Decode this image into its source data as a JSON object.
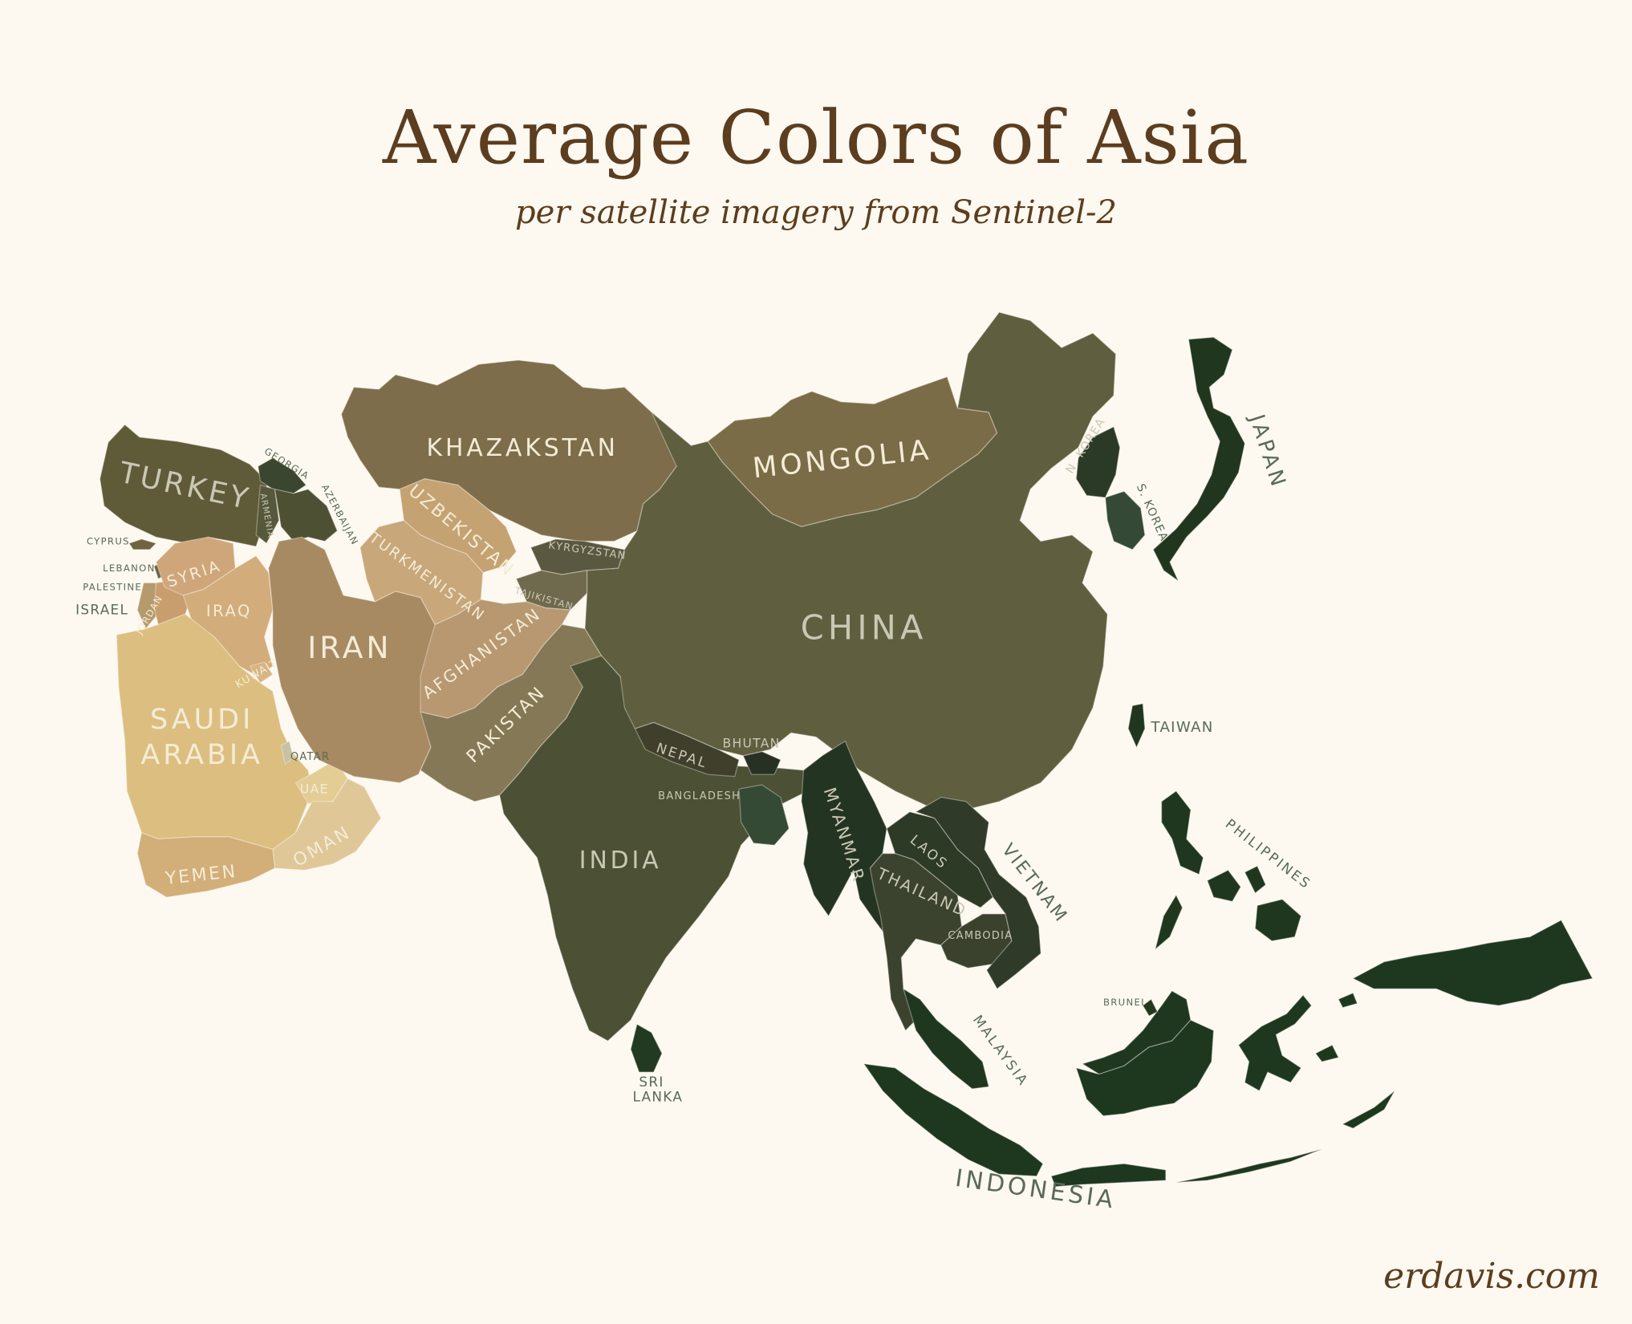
{
  "header": {
    "title": "Average Colors of Asia",
    "subtitle": "per satellite imagery from Sentinel-2"
  },
  "credit": "erdavis.com",
  "label_colors": {
    "on_dark": "#c9c8b4",
    "on_light": "#f4ecd6",
    "outside": "#5a6a58"
  },
  "countries": {
    "turkey": {
      "name": "TURKEY",
      "color": "#5f5a38"
    },
    "georgia": {
      "name": "GEORGIA",
      "color": "#3a4630"
    },
    "armenia": {
      "name": "ARMENIA",
      "color": "#55583a"
    },
    "azerbaijan": {
      "name": "AZERBAIJAN",
      "color": "#4e5034"
    },
    "cyprus": {
      "name": "CYPRUS",
      "color": "#6e6440"
    },
    "lebanon": {
      "name": "LEBANON",
      "color": "#6b6442"
    },
    "palestine": {
      "name": "PALESTINE",
      "color": "#9b8a5e"
    },
    "israel": {
      "name": "ISRAEL",
      "color": "#b59a6c"
    },
    "jordan": {
      "name": "JORDAN",
      "color": "#c89e6f"
    },
    "syria": {
      "name": "SYRIA",
      "color": "#cfa67a"
    },
    "iraq": {
      "name": "IRAQ",
      "color": "#d3ac7b"
    },
    "kuwait": {
      "name": "KUWAIT",
      "color": "#d7b584"
    },
    "saudi_arabia": {
      "name": "SAUDI\nARABIA",
      "color": "#dcbe80"
    },
    "qatar": {
      "name": "QATAR",
      "color": "#c8c2a4"
    },
    "uae": {
      "name": "UAE",
      "color": "#e4cd95"
    },
    "oman": {
      "name": "OMAN",
      "color": "#dfc797"
    },
    "yemen": {
      "name": "YEMEN",
      "color": "#d2ae78"
    },
    "iran": {
      "name": "IRAN",
      "color": "#a88a62"
    },
    "kazakhstan": {
      "name": "KHAZAKSTAN",
      "color": "#7d6d4b"
    },
    "uzbekistan": {
      "name": "UZBEKISTAN",
      "color": "#c4a272"
    },
    "turkmenistan": {
      "name": "TURKMENISTAN",
      "color": "#c8a77a"
    },
    "kyrgyzstan": {
      "name": "KYRGYZSTAN",
      "color": "#5a5840"
    },
    "tajikistan": {
      "name": "TAJIKISTAN",
      "color": "#6f6a4d"
    },
    "afghanistan": {
      "name": "AFGHANISTAN",
      "color": "#b79870"
    },
    "pakistan": {
      "name": "PAKISTAN",
      "color": "#857856"
    },
    "india": {
      "name": "INDIA",
      "color": "#4c5034"
    },
    "nepal": {
      "name": "NEPAL",
      "color": "#3f3f2c"
    },
    "bhutan": {
      "name": "BHUTAN",
      "color": "#283024"
    },
    "bangladesh": {
      "name": "BANGLADESH",
      "color": "#344a34"
    },
    "sri_lanka": {
      "name": "SRI\nLANKA",
      "color": "#223a22"
    },
    "mongolia": {
      "name": "MONGOLIA",
      "color": "#7b6c48"
    },
    "china": {
      "name": "CHINA",
      "color": "#5f5f40"
    },
    "n_korea": {
      "name": "N. KOREA",
      "color": "#2b3a26"
    },
    "s_korea": {
      "name": "S. KOREA",
      "color": "#344a36"
    },
    "japan": {
      "name": "JAPAN",
      "color": "#20361f"
    },
    "taiwan": {
      "name": "TAIWAN",
      "color": "#20361f"
    },
    "myanmar": {
      "name": "MYANMAR",
      "color": "#243422"
    },
    "laos": {
      "name": "LAOS",
      "color": "#2d3a26"
    },
    "thailand": {
      "name": "THAILAND",
      "color": "#3b432e"
    },
    "vietnam": {
      "name": "VIETNAM",
      "color": "#2f3a28"
    },
    "cambodia": {
      "name": "CAMBODIA",
      "color": "#3a422d"
    },
    "malaysia": {
      "name": "MALAYSIA",
      "color": "#1f361f"
    },
    "brunei": {
      "name": "BRUNEI",
      "color": "#22381f"
    },
    "philippines": {
      "name": "PHILIPPINES",
      "color": "#1f361f"
    },
    "indonesia": {
      "name": "INDONESIA",
      "color": "#1e371f"
    }
  }
}
